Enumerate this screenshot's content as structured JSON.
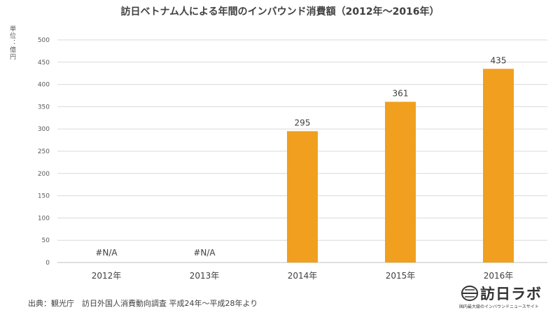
{
  "chart_data": {
    "type": "bar",
    "title": "訪日ベトナム人による年間のインバウンド消費額（2012年～2016年）",
    "ylabel": "単位：億円",
    "categories": [
      "2012年",
      "2013年",
      "2014年",
      "2015年",
      "2016年"
    ],
    "values": [
      null,
      null,
      295,
      361,
      435
    ],
    "data_labels": [
      "#N/A",
      "#N/A",
      "295",
      "361",
      "435"
    ],
    "ylim": [
      0,
      500
    ],
    "yticks": [
      0,
      50,
      100,
      150,
      200,
      250,
      300,
      350,
      400,
      450,
      500
    ],
    "grid": true,
    "bar_color": "#F0A01E",
    "grid_color": "#D9D9D9"
  },
  "footer": {
    "source": "出典：観光庁　訪日外国人消費動向調査 平成24年～平成28年より"
  },
  "logo": {
    "name": "訪日ラボ",
    "tagline": "国内最大級のインバウンドニュースサイト"
  }
}
